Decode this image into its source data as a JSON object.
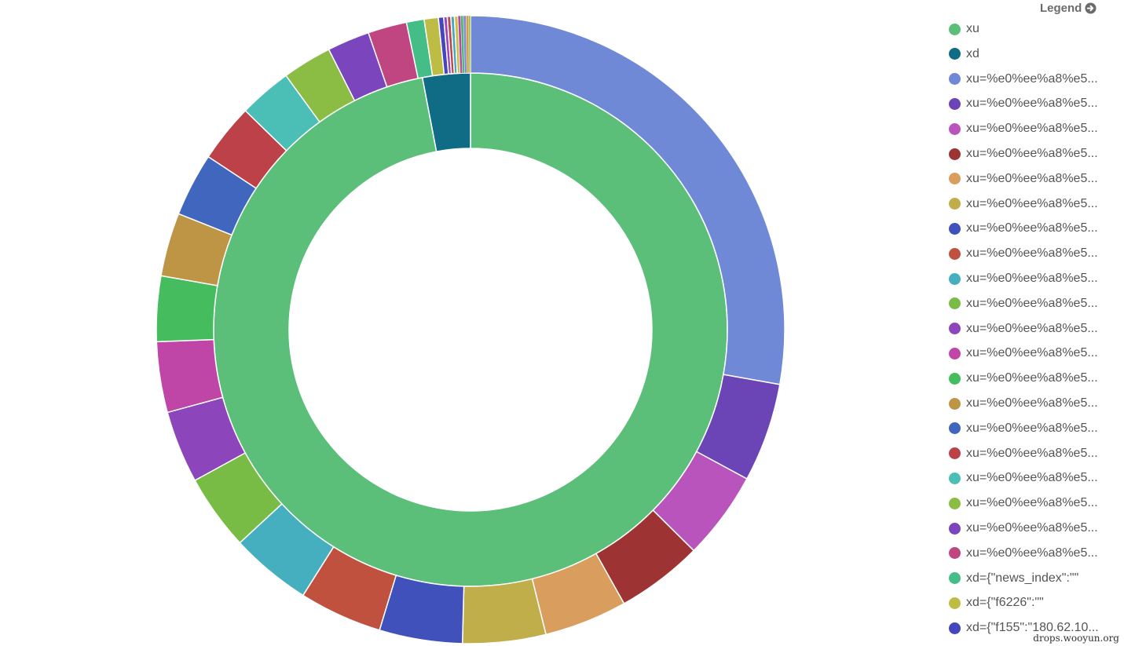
{
  "legend": {
    "title": "Legend",
    "icon": "arrow-circle-right-icon"
  },
  "watermark": "drops.wooyun.org",
  "chart_data": {
    "type": "pie",
    "variant": "nested-donut",
    "rings": [
      {
        "name": "inner",
        "slices": [
          {
            "label": "xu",
            "value": 97,
            "color": "#5bbf7a"
          },
          {
            "label": "xd",
            "value": 3,
            "color": "#0f6c84"
          }
        ]
      },
      {
        "name": "outer",
        "slices": [
          {
            "label": "xu=%e0%ee%a8%e5...",
            "value": 30.6,
            "color": "#6f89d6"
          },
          {
            "label": "xu=%e0%ee%a8%e5...",
            "value": 5.6,
            "color": "#6b44b5"
          },
          {
            "label": "xu=%e0%ee%a8%e5...",
            "value": 5.0,
            "color": "#b954bd"
          },
          {
            "label": "xu=%e0%ee%a8%e5...",
            "value": 4.9,
            "color": "#9e3333"
          },
          {
            "label": "xu=%e0%ee%a8%e5...",
            "value": 4.7,
            "color": "#d99e5e"
          },
          {
            "label": "xu=%e0%ee%a8%e5...",
            "value": 4.7,
            "color": "#bfae4a"
          },
          {
            "label": "xu=%e0%ee%a8%e5...",
            "value": 4.7,
            "color": "#4051bc"
          },
          {
            "label": "xu=%e0%ee%a8%e5...",
            "value": 4.7,
            "color": "#c0513f"
          },
          {
            "label": "xu=%e0%ee%a8%e5...",
            "value": 4.6,
            "color": "#45afbf"
          },
          {
            "label": "xu=%e0%ee%a8%e5...",
            "value": 4.3,
            "color": "#78bc45"
          },
          {
            "label": "xu=%e0%ee%a8%e5...",
            "value": 4.1,
            "color": "#8c45bb"
          },
          {
            "label": "xu=%e0%ee%a8%e5...",
            "value": 4.0,
            "color": "#bf45a6"
          },
          {
            "label": "xu=%e0%ee%a8%e5...",
            "value": 3.7,
            "color": "#45bd5e"
          },
          {
            "label": "xu=%e0%ee%a8%e5...",
            "value": 3.6,
            "color": "#bd9545"
          },
          {
            "label": "xu=%e0%ee%a8%e5...",
            "value": 3.6,
            "color": "#4166bd"
          },
          {
            "label": "xu=%e0%ee%a8%e5...",
            "value": 3.3,
            "color": "#bc4149"
          },
          {
            "label": "xu=%e0%ee%a8%e5...",
            "value": 3.0,
            "color": "#4bbfb6"
          },
          {
            "label": "xu=%e0%ee%a8%e5...",
            "value": 2.8,
            "color": "#8bbd45"
          },
          {
            "label": "xu=%e0%ee%a8%e5...",
            "value": 2.4,
            "color": "#7a45bd"
          },
          {
            "label": "xu=%e0%ee%a8%e5...",
            "value": 2.2,
            "color": "#bf4680"
          },
          {
            "label": "xd={\"news_index\":\"\"",
            "value": 1.0,
            "color": "#45bd86"
          },
          {
            "label": "xd={\"f6226\":\"\"",
            "value": 0.8,
            "color": "#bdbd45"
          },
          {
            "label": "xd={\"f155\":\"180.62.10...",
            "value": 0.3,
            "color": "#4545bd"
          },
          {
            "label": "",
            "value": 0.2,
            "color": "#9c45bd"
          },
          {
            "label": "",
            "value": 0.2,
            "color": "#bd4545"
          },
          {
            "label": "",
            "value": 0.2,
            "color": "#45a8bd"
          },
          {
            "label": "",
            "value": 0.2,
            "color": "#c8bd45"
          },
          {
            "label": "",
            "value": 0.15,
            "color": "#bd45a0"
          },
          {
            "label": "",
            "value": 0.15,
            "color": "#45bd7a"
          },
          {
            "label": "",
            "value": 0.15,
            "color": "#8a8ad0"
          },
          {
            "label": "",
            "value": 0.15,
            "color": "#d0a045"
          },
          {
            "label": "",
            "value": 0.1,
            "color": "#a0bd45"
          }
        ]
      }
    ],
    "legend_entries": [
      {
        "label": "xu",
        "color": "#5bbf7a"
      },
      {
        "label": "xd",
        "color": "#0f6c84"
      },
      {
        "label": "xu=%e0%ee%a8%e5...",
        "color": "#6f89d6"
      },
      {
        "label": "xu=%e0%ee%a8%e5...",
        "color": "#6b44b5"
      },
      {
        "label": "xu=%e0%ee%a8%e5...",
        "color": "#b954bd"
      },
      {
        "label": "xu=%e0%ee%a8%e5...",
        "color": "#9e3333"
      },
      {
        "label": "xu=%e0%ee%a8%e5...",
        "color": "#d99e5e"
      },
      {
        "label": "xu=%e0%ee%a8%e5...",
        "color": "#bfae4a"
      },
      {
        "label": "xu=%e0%ee%a8%e5...",
        "color": "#4051bc"
      },
      {
        "label": "xu=%e0%ee%a8%e5...",
        "color": "#c0513f"
      },
      {
        "label": "xu=%e0%ee%a8%e5...",
        "color": "#45afbf"
      },
      {
        "label": "xu=%e0%ee%a8%e5...",
        "color": "#78bc45"
      },
      {
        "label": "xu=%e0%ee%a8%e5...",
        "color": "#8c45bb"
      },
      {
        "label": "xu=%e0%ee%a8%e5...",
        "color": "#bf45a6"
      },
      {
        "label": "xu=%e0%ee%a8%e5...",
        "color": "#45bd5e"
      },
      {
        "label": "xu=%e0%ee%a8%e5...",
        "color": "#bd9545"
      },
      {
        "label": "xu=%e0%ee%a8%e5...",
        "color": "#4166bd"
      },
      {
        "label": "xu=%e0%ee%a8%e5...",
        "color": "#bc4149"
      },
      {
        "label": "xu=%e0%ee%a8%e5...",
        "color": "#4bbfb6"
      },
      {
        "label": "xu=%e0%ee%a8%e5...",
        "color": "#8bbd45"
      },
      {
        "label": "xu=%e0%ee%a8%e5...",
        "color": "#7a45bd"
      },
      {
        "label": "xu=%e0%ee%a8%e5...",
        "color": "#bf4680"
      },
      {
        "label": "xd={\"news_index\":\"\"",
        "color": "#45bd86"
      },
      {
        "label": "xd={\"f6226\":\"\"",
        "color": "#bdbd45"
      },
      {
        "label": "xd={\"f155\":\"180.62.10...",
        "color": "#4545bd"
      }
    ],
    "legend_position": "right"
  }
}
